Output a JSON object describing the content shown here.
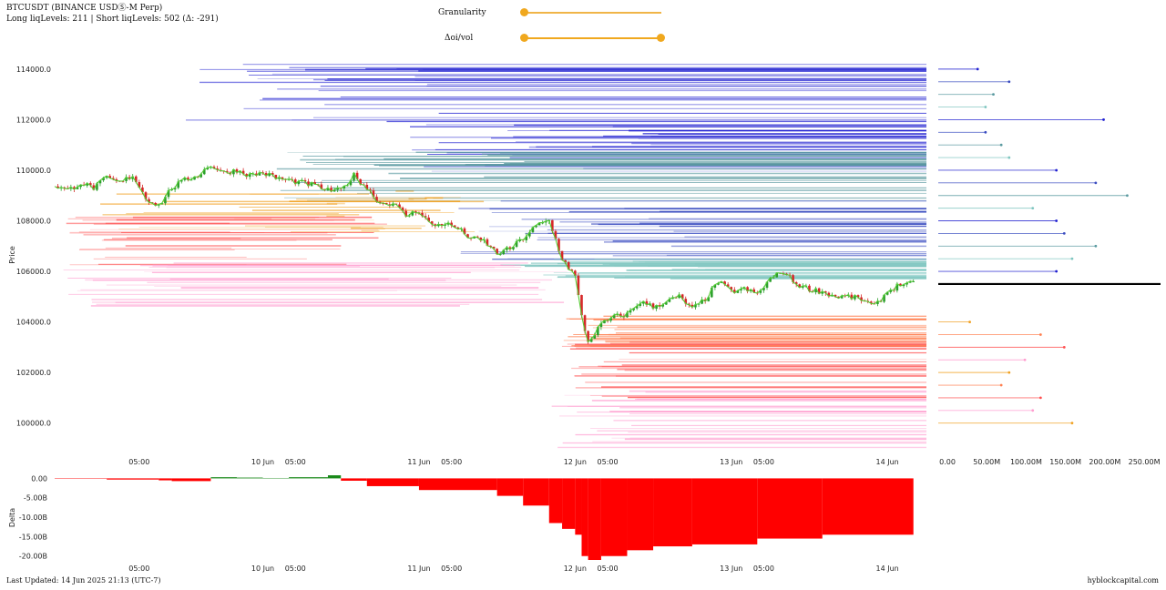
{
  "header": {
    "title": "BTCUSDT (BINANCE USDⓈ-M Perp)",
    "subtitle": "Long liqLevels: 211 | Short liqLevels: 502 (Δ: -291)"
  },
  "controls": {
    "granularity_label": "Granularity",
    "granularity_value": 0.0,
    "oi_vol_label": "Δoi/vol",
    "oi_vol_range": [
      0.0,
      1.0
    ]
  },
  "colors": {
    "up_candle": "#2ca02c",
    "down_candle": "#d62728",
    "price_line": "#55cc33",
    "delta_positive": "#1a8a1a",
    "delta_negative": "#ff0000",
    "current_price_line": "#000000",
    "short_levels": [
      "#1f1fd0",
      "#3a4cc0",
      "#5a9aa0",
      "#7fc6c0"
    ],
    "long_levels": [
      "#f0a020",
      "#ff7f50",
      "#ff5050",
      "#ff9ccf"
    ],
    "slider": "#f0a81e"
  },
  "chart_data": [
    {
      "type": "line",
      "id": "price",
      "ylabel": "Price",
      "ylim": [
        98800,
        114500
      ],
      "yticks": [
        100000,
        102000,
        104000,
        106000,
        108000,
        110000,
        112000,
        114000
      ],
      "ytick_labels": [
        "100000.0",
        "102000.0",
        "104000.0",
        "106000.0",
        "108000.0",
        "110000.0",
        "112000.0",
        "114000.0"
      ],
      "xlim": [
        -8,
        126
      ],
      "xticks": [
        5,
        24,
        29,
        48,
        53,
        72,
        77,
        96,
        101,
        120
      ],
      "xtick_labels": [
        "05:00",
        "10 Jun",
        "05:00",
        "11 Jun",
        "05:00",
        "12 Jun",
        "05:00",
        "13 Jun",
        "05:00",
        "14 Jun"
      ],
      "x": [
        -8,
        -6,
        -4,
        -2,
        0,
        2,
        4,
        6,
        8,
        10,
        12,
        14,
        16,
        18,
        20,
        22,
        24,
        26,
        28,
        30,
        32,
        34,
        36,
        38,
        40,
        42,
        44,
        46,
        48,
        50,
        52,
        54,
        56,
        58,
        60,
        62,
        64,
        66,
        68,
        70,
        72,
        73,
        74,
        76,
        78,
        80,
        82,
        84,
        86,
        88,
        90,
        92,
        94,
        96,
        98,
        100,
        102,
        104,
        106,
        108,
        110,
        112,
        114,
        116,
        118,
        120,
        122,
        124
      ],
      "close": [
        109400,
        109200,
        109500,
        109300,
        109700,
        109500,
        109800,
        108900,
        108600,
        109300,
        109600,
        109800,
        110200,
        109900,
        110000,
        109800,
        109900,
        109700,
        109600,
        109500,
        109400,
        109200,
        109200,
        109800,
        109300,
        108700,
        108700,
        108200,
        108400,
        107800,
        107900,
        107700,
        107300,
        107200,
        106700,
        106900,
        107300,
        107800,
        108000,
        106500,
        105800,
        104200,
        103200,
        103900,
        104200,
        104300,
        104800,
        104600,
        104800,
        105000,
        104500,
        104900,
        105600,
        105200,
        105300,
        105100,
        105700,
        106000,
        105500,
        105300,
        105200,
        105000,
        105000,
        104900,
        104600,
        105200,
        105500,
        105500
      ],
      "current_price": 105500
    },
    {
      "type": "bar",
      "id": "liq_volume",
      "orientation": "horizontal",
      "xlim": [
        0,
        280000000
      ],
      "xticks": [
        0,
        50000000,
        100000000,
        150000000,
        200000000,
        250000000
      ],
      "xtick_labels": [
        "0.00",
        "50.00M",
        "100.00M",
        "150.00M",
        "200.00M",
        "250.00M"
      ],
      "series": [
        {
          "name": "short",
          "price": [
            114000,
            113500,
            113000,
            112500,
            112000,
            111500,
            111000,
            110500,
            110000,
            109500,
            109000,
            108500,
            108000,
            107500,
            107000,
            106500,
            106000
          ],
          "values": [
            50000000,
            90000000,
            70000000,
            60000000,
            210000000,
            60000000,
            80000000,
            90000000,
            150000000,
            200000000,
            240000000,
            120000000,
            150000000,
            160000000,
            200000000,
            170000000,
            150000000
          ]
        },
        {
          "name": "long",
          "price": [
            104000,
            103500,
            103000,
            102500,
            102000,
            101500,
            101000,
            100500,
            100000
          ],
          "values": [
            40000000,
            130000000,
            160000000,
            110000000,
            90000000,
            80000000,
            130000000,
            120000000,
            170000000
          ]
        }
      ]
    },
    {
      "type": "area",
      "id": "delta",
      "ylabel": "Delta",
      "ylim": [
        -21000000000,
        800000000
      ],
      "yticks": [
        0,
        -5000000000,
        -10000000000,
        -15000000000,
        -20000000000
      ],
      "ytick_labels": [
        "0.00",
        "-5.00B",
        "-10.00B",
        "-15.00B",
        "-20.00B"
      ],
      "x": [
        -8,
        0,
        8,
        10,
        16,
        20,
        24,
        28,
        34,
        36,
        40,
        48,
        60,
        64,
        68,
        70,
        72,
        73,
        74,
        76,
        80,
        84,
        90,
        100,
        110,
        124
      ],
      "values": [
        -100000000.0,
        -300000000.0,
        -500000000.0,
        -700000000.0,
        300000000.0,
        200000000.0,
        100000000.0,
        300000000.0,
        800000000.0,
        -600000000.0,
        -2000000000.0,
        -3000000000.0,
        -4500000000.0,
        -7000000000.0,
        -11500000000.0,
        -13000000000.0,
        -14500000000.0,
        -20000000000.0,
        -21000000000.0,
        -20000000000.0,
        -18500000000.0,
        -17500000000.0,
        -17000000000.0,
        -15500000000.0,
        -14500000000.0,
        -14500000000.0
      ]
    }
  ],
  "footer": {
    "updated": "Last Updated: 14 Jun 2025 21:13 (UTC-7)",
    "source": "hyblockcapital.com"
  }
}
